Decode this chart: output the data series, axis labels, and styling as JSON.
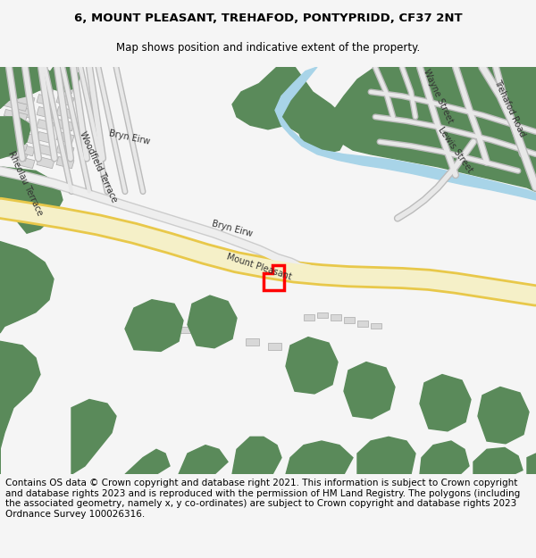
{
  "title": "6, MOUNT PLEASANT, TREHAFOD, PONTYPRIDD, CF37 2NT",
  "subtitle": "Map shows position and indicative extent of the property.",
  "footer": "Contains OS data © Crown copyright and database right 2021. This information is subject to Crown copyright and database rights 2023 and is reproduced with the permission of HM Land Registry. The polygons (including the associated geometry, namely x, y co-ordinates) are subject to Crown copyright and database rights 2023 Ordnance Survey 100026316.",
  "title_fontsize": 9.5,
  "subtitle_fontsize": 8.5,
  "footer_fontsize": 7.5,
  "bg_color": "#f5f5f5",
  "map_bg": "#ffffff",
  "green_color": "#5a8a5a",
  "road_color": "#f5f0c8",
  "road_border": "#e8c84a",
  "water_color": "#a8d4e8",
  "building_color": "#d8d8d8",
  "plot_color": "#ff0000",
  "street_colors": {
    "minor": "#cccccc"
  }
}
